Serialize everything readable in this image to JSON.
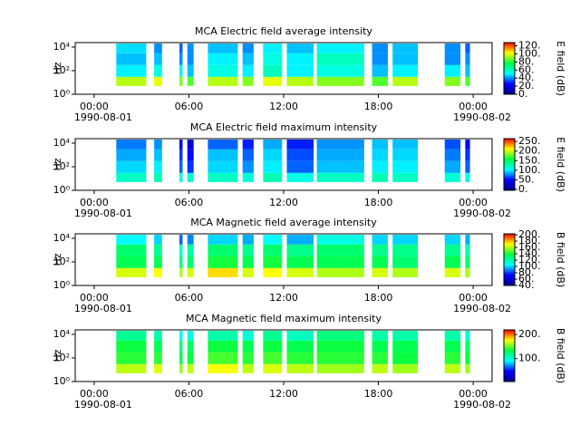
{
  "chart_data": [
    {
      "type": "heatmap",
      "title": "MCA  Electric field average intensity",
      "ylabel": "Hz",
      "zlabel": "E field (dB)",
      "log_y": true,
      "ylim": [
        1,
        24000
      ],
      "yticks": [
        {
          "value": 1,
          "label": "10⁰"
        },
        {
          "value": 100,
          "label": "10²"
        },
        {
          "value": 10000,
          "label": "10⁴"
        }
      ],
      "xlim": [
        -1.2,
        25.2
      ],
      "xticks": [
        {
          "value": 0,
          "label": "00:00"
        },
        {
          "value": 6,
          "label": "06:00"
        },
        {
          "value": 12,
          "label": "12:00"
        },
        {
          "value": 18,
          "label": "18:00"
        },
        {
          "value": 24,
          "label": "00:00"
        }
      ],
      "date_labels": [
        {
          "value": 0,
          "label": "1990-08-01"
        },
        {
          "value": 24,
          "label": "1990-08-02"
        }
      ],
      "zlim": [
        0,
        128
      ],
      "zticks": [
        {
          "value": 0,
          "label": "0."
        },
        {
          "value": 20,
          "label": "20."
        },
        {
          "value": 40,
          "label": "40."
        },
        {
          "value": 60,
          "label": "60."
        },
        {
          "value": 80,
          "label": "80."
        },
        {
          "value": 100,
          "label": "100."
        },
        {
          "value": 120,
          "label": "120."
        }
      ],
      "colormap": [
        "#00008f",
        "#0000ff",
        "#00ffff",
        "#00ff40",
        "#ffff00",
        "#ff0000"
      ],
      "freq_edges": [
        5,
        30,
        300,
        3000,
        20000
      ],
      "segments": [
        [
          1.4,
          3.3
        ],
        [
          3.8,
          4.3
        ],
        [
          5.4,
          5.6
        ],
        [
          5.9,
          6.3
        ],
        [
          7.2,
          9.1
        ],
        [
          9.4,
          10.1
        ],
        [
          10.7,
          11.9
        ],
        [
          12.2,
          13.9
        ],
        [
          14.1,
          17.1
        ],
        [
          17.6,
          18.6
        ],
        [
          18.9,
          20.5
        ],
        [
          22.2,
          23.2
        ],
        [
          23.5,
          23.8
        ]
      ],
      "values": [
        [
          95,
          50,
          45,
          48
        ],
        [
          100,
          55,
          45,
          40
        ],
        [
          90,
          50,
          40,
          35
        ],
        [
          85,
          45,
          40,
          40
        ],
        [
          95,
          55,
          50,
          45
        ],
        [
          90,
          50,
          45,
          40
        ],
        [
          100,
          60,
          55,
          50
        ],
        [
          95,
          50,
          50,
          45
        ],
        [
          90,
          55,
          60,
          50
        ],
        [
          85,
          45,
          40,
          40
        ],
        [
          95,
          50,
          45,
          45
        ],
        [
          90,
          50,
          40,
          40
        ],
        [
          85,
          45,
          40,
          35
        ]
      ]
    },
    {
      "type": "heatmap",
      "title": "MCA  Electric field maximum intensity",
      "ylabel": "Hz",
      "zlabel": "E field (dB)",
      "log_y": true,
      "ylim": [
        1,
        24000
      ],
      "yticks": [
        {
          "value": 1,
          "label": "10⁰"
        },
        {
          "value": 100,
          "label": "10²"
        },
        {
          "value": 10000,
          "label": "10⁴"
        }
      ],
      "xlim": [
        -1.2,
        25.2
      ],
      "xticks": [
        {
          "value": 0,
          "label": "00:00"
        },
        {
          "value": 6,
          "label": "06:00"
        },
        {
          "value": 12,
          "label": "12:00"
        },
        {
          "value": 18,
          "label": "18:00"
        },
        {
          "value": 24,
          "label": "00:00"
        }
      ],
      "date_labels": [
        {
          "value": 0,
          "label": "1990-08-01"
        },
        {
          "value": 24,
          "label": "1990-08-02"
        }
      ],
      "zlim": [
        -5,
        265
      ],
      "zticks": [
        {
          "value": 0,
          "label": "0."
        },
        {
          "value": 50,
          "label": "50."
        },
        {
          "value": 100,
          "label": "100."
        },
        {
          "value": 150,
          "label": "150."
        },
        {
          "value": 200,
          "label": "200."
        },
        {
          "value": 250,
          "label": "250."
        }
      ],
      "colormap": [
        "#00008f",
        "#0000ff",
        "#00ffff",
        "#00ff40",
        "#ffff00",
        "#ff0000"
      ],
      "freq_edges": [
        5,
        30,
        300,
        3000,
        20000
      ],
      "segments": [
        [
          1.4,
          3.3
        ],
        [
          3.8,
          4.3
        ],
        [
          5.4,
          5.6
        ],
        [
          5.9,
          6.3
        ],
        [
          7.2,
          9.1
        ],
        [
          9.4,
          10.1
        ],
        [
          10.7,
          11.9
        ],
        [
          12.2,
          13.9
        ],
        [
          14.1,
          17.1
        ],
        [
          17.6,
          18.6
        ],
        [
          18.9,
          20.5
        ],
        [
          22.2,
          23.2
        ],
        [
          23.5,
          23.8
        ]
      ],
      "values": [
        [
          120,
          95,
          85,
          75
        ],
        [
          125,
          100,
          90,
          80
        ],
        [
          110,
          70,
          60,
          40
        ],
        [
          115,
          60,
          50,
          30
        ],
        [
          120,
          95,
          90,
          70
        ],
        [
          115,
          80,
          70,
          55
        ],
        [
          125,
          100,
          95,
          85
        ],
        [
          110,
          70,
          65,
          55
        ],
        [
          120,
          90,
          85,
          80
        ],
        [
          125,
          100,
          95,
          90
        ],
        [
          120,
          100,
          95,
          90
        ],
        [
          115,
          85,
          75,
          65
        ],
        [
          110,
          70,
          60,
          50
        ]
      ]
    },
    {
      "type": "heatmap",
      "title": "MCA  Magnetic field average intensity",
      "ylabel": "Hz",
      "zlabel": "B field (dB)",
      "log_y": true,
      "ylim": [
        1,
        24000
      ],
      "yticks": [
        {
          "value": 1,
          "label": "10⁰"
        },
        {
          "value": 100,
          "label": "10²"
        },
        {
          "value": 10000,
          "label": "10⁴"
        }
      ],
      "xlim": [
        -1.2,
        25.2
      ],
      "xticks": [
        {
          "value": 0,
          "label": "00:00"
        },
        {
          "value": 6,
          "label": "06:00"
        },
        {
          "value": 12,
          "label": "12:00"
        },
        {
          "value": 18,
          "label": "18:00"
        },
        {
          "value": 24,
          "label": "00:00"
        }
      ],
      "date_labels": [
        {
          "value": 0,
          "label": "1990-08-01"
        },
        {
          "value": 24,
          "label": "1990-08-02"
        }
      ],
      "zlim": [
        40,
        203
      ],
      "zticks": [
        {
          "value": 40,
          "label": "40."
        },
        {
          "value": 60,
          "label": "60."
        },
        {
          "value": 80,
          "label": "80."
        },
        {
          "value": 100,
          "label": "100."
        },
        {
          "value": 120,
          "label": "120."
        },
        {
          "value": 140,
          "label": "140."
        },
        {
          "value": 160,
          "label": "160."
        },
        {
          "value": 180,
          "label": "180."
        },
        {
          "value": 200,
          "label": "200."
        }
      ],
      "colormap": [
        "#00008f",
        "#0000ff",
        "#00ffff",
        "#00ff40",
        "#ffff00",
        "#ff0000"
      ],
      "freq_edges": [
        5,
        30,
        300,
        3000,
        20000
      ],
      "segments": [
        [
          1.4,
          3.3
        ],
        [
          3.8,
          4.3
        ],
        [
          5.4,
          5.6
        ],
        [
          5.9,
          6.3
        ],
        [
          7.2,
          9.1
        ],
        [
          9.4,
          10.1
        ],
        [
          10.7,
          11.9
        ],
        [
          12.2,
          13.9
        ],
        [
          14.1,
          17.1
        ],
        [
          17.6,
          18.6
        ],
        [
          18.9,
          20.5
        ],
        [
          22.2,
          23.2
        ],
        [
          23.5,
          23.8
        ]
      ],
      "values": [
        [
          165,
          135,
          130,
          105
        ],
        [
          170,
          135,
          125,
          100
        ],
        [
          160,
          125,
          115,
          85
        ],
        [
          165,
          130,
          120,
          90
        ],
        [
          175,
          140,
          130,
          100
        ],
        [
          165,
          135,
          125,
          95
        ],
        [
          170,
          140,
          130,
          105
        ],
        [
          165,
          135,
          125,
          95
        ],
        [
          160,
          135,
          130,
          110
        ],
        [
          165,
          135,
          125,
          100
        ],
        [
          160,
          130,
          125,
          100
        ],
        [
          165,
          135,
          125,
          100
        ],
        [
          160,
          130,
          120,
          95
        ]
      ]
    },
    {
      "type": "heatmap",
      "title": "MCA  Magnetic field maximum intensity",
      "ylabel": "Hz",
      "zlabel": "B field (dB)",
      "log_y": true,
      "ylim": [
        1,
        24000
      ],
      "yticks": [
        {
          "value": 1,
          "label": "10⁰"
        },
        {
          "value": 100,
          "label": "10²"
        },
        {
          "value": 10000,
          "label": "10⁴"
        }
      ],
      "xlim": [
        -1.2,
        25.2
      ],
      "xticks": [
        {
          "value": 0,
          "label": "00:00"
        },
        {
          "value": 6,
          "label": "06:00"
        },
        {
          "value": 12,
          "label": "12:00"
        },
        {
          "value": 18,
          "label": "18:00"
        },
        {
          "value": 24,
          "label": "00:00"
        }
      ],
      "date_labels": [
        {
          "value": 0,
          "label": "1990-08-01"
        },
        {
          "value": 24,
          "label": "1990-08-02"
        }
      ],
      "zlim": [
        5,
        219
      ],
      "zticks": [
        {
          "value": 100,
          "label": "100."
        },
        {
          "value": 200,
          "label": "200."
        }
      ],
      "colormap": [
        "#00008f",
        "#0000ff",
        "#00ffff",
        "#00ff40",
        "#ffff00",
        "#ff0000"
      ],
      "freq_edges": [
        5,
        30,
        300,
        3000,
        20000
      ],
      "segments": [
        [
          1.4,
          3.3
        ],
        [
          3.8,
          4.3
        ],
        [
          5.4,
          5.6
        ],
        [
          5.9,
          6.3
        ],
        [
          7.2,
          9.1
        ],
        [
          9.4,
          10.1
        ],
        [
          10.7,
          11.9
        ],
        [
          12.2,
          13.9
        ],
        [
          14.1,
          17.1
        ],
        [
          17.6,
          18.6
        ],
        [
          18.9,
          20.5
        ],
        [
          22.2,
          23.2
        ],
        [
          23.5,
          23.8
        ]
      ],
      "values": [
        [
          165,
          140,
          135,
          115
        ],
        [
          170,
          140,
          130,
          110
        ],
        [
          160,
          130,
          120,
          90
        ],
        [
          165,
          135,
          125,
          95
        ],
        [
          175,
          145,
          135,
          110
        ],
        [
          165,
          140,
          130,
          100
        ],
        [
          170,
          145,
          135,
          115
        ],
        [
          165,
          140,
          130,
          105
        ],
        [
          160,
          140,
          135,
          120
        ],
        [
          165,
          140,
          130,
          110
        ],
        [
          160,
          135,
          130,
          110
        ],
        [
          165,
          140,
          130,
          110
        ],
        [
          160,
          135,
          125,
          100
        ]
      ]
    }
  ]
}
